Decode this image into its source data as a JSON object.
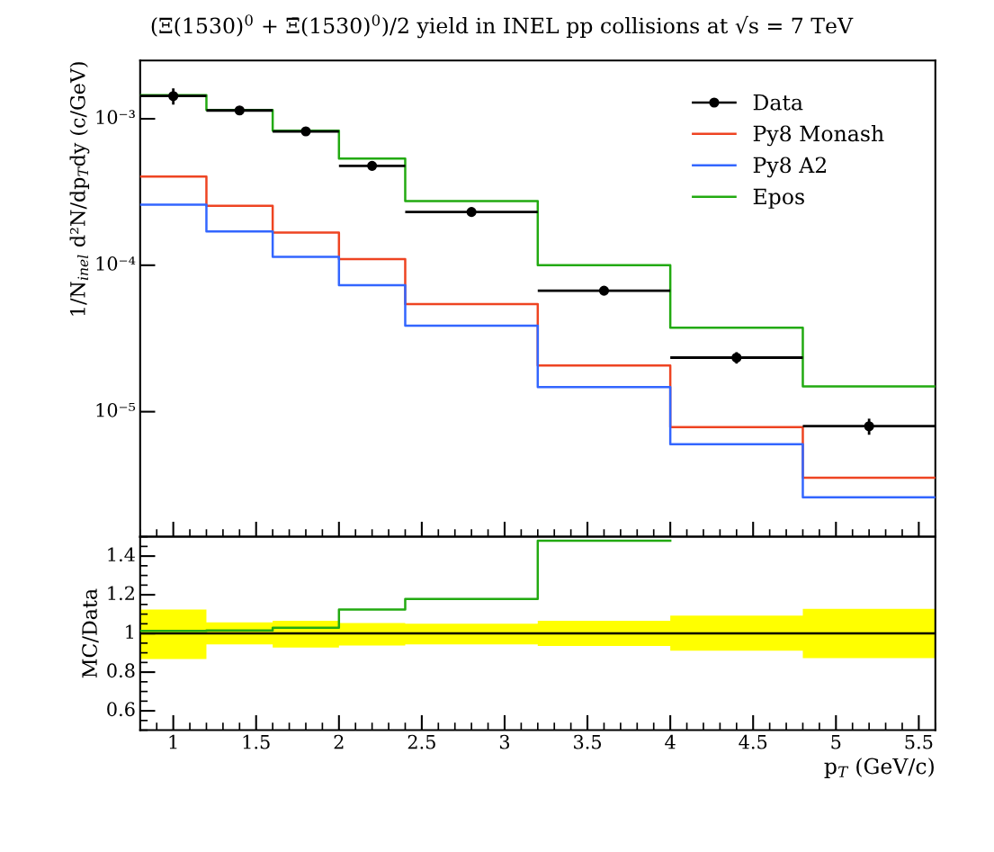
{
  "chart_data": [
    {
      "type": "step",
      "title": "(Ξ(1530)$^{0}$ + Ξ̄(1530)$^{0}$)/2 yield in INEL pp collisions at √s = 7 TeV",
      "ylabel": "1/N$_{inel}$ d²N/dp$_{T}$dy (c/GeV)",
      "x": [
        0.8,
        1.2,
        1.6,
        2.0,
        2.4,
        3.2,
        4.0,
        4.8,
        5.6
      ],
      "xlim": [
        0.8,
        5.6
      ],
      "xticks": [
        1,
        1.5,
        2,
        2.5,
        3,
        3.5,
        4,
        4.5,
        5,
        5.5
      ],
      "log": true,
      "ylim": [
        1.4e-06,
        0.0025
      ],
      "yticks": [
        {
          "value": 1e-05,
          "label": "10⁻⁵"
        },
        {
          "value": 0.0001,
          "label": "10⁻⁴"
        },
        {
          "value": 0.001,
          "label": "10⁻³"
        }
      ],
      "tick_labels": "y",
      "legend": "top right",
      "series": [
        {
          "name": "Data",
          "type": "scatter",
          "color": "#000000",
          "marker": "circle",
          "x": [
            1.0,
            1.4,
            1.8,
            2.2,
            2.8,
            3.6,
            4.4,
            5.2
          ],
          "xerrors": [
            0.2,
            0.2,
            0.2,
            0.2,
            0.4,
            0.4,
            0.4,
            0.4
          ],
          "values": [
            0.00143,
            0.00114,
            0.00082,
            0.000477,
            0.000231,
            6.7e-05,
            2.34e-05,
            7.96e-06
          ],
          "errors": [
            0.00018,
            6.5e-05,
            5.5e-05,
            2.7e-05,
            1.2e-05,
            4.3e-06,
            2.1e-06,
            1e-06
          ]
        },
        {
          "name": "Py8 Monash",
          "color": "#ee4422",
          "values": [
            0.000403,
            0.000255,
            0.000167,
            0.00011,
            5.43e-05,
            2.07e-05,
            7.85e-06,
            3.54e-06,
            3.54e-06
          ]
        },
        {
          "name": "Py8 A2",
          "color": "#3366ff",
          "values": [
            0.000259,
            0.00017,
            0.000114,
            7.3e-05,
            3.86e-05,
            1.47e-05,
            6e-06,
            2.6e-06,
            2.6e-06
          ]
        },
        {
          "name": "Epos",
          "color": "#22aa11",
          "values": [
            0.00145,
            0.00115,
            0.00083,
            0.000535,
            0.000274,
            0.0001,
            3.75e-05,
            1.49e-05,
            1.49e-05
          ]
        }
      ]
    },
    {
      "type": "step",
      "xlabel": "p$_{T}$ (GeV/c)",
      "ylabel": "MC/Data",
      "x": [
        0.8,
        1.2,
        1.6,
        2.0,
        2.4,
        3.2,
        4.0,
        4.8,
        5.6
      ],
      "xlim": [
        0.8,
        5.6
      ],
      "xticks": [
        1,
        1.5,
        2,
        2.5,
        3,
        3.5,
        4,
        4.5,
        5,
        5.5
      ],
      "ylim": [
        0.5,
        1.5
      ],
      "yticks": [
        0.6,
        0.8,
        1,
        1.2,
        1.4
      ],
      "series": [
        {
          "color": "#000000",
          "values": [
            1,
            1,
            1,
            1,
            1,
            1,
            1,
            1,
            1
          ],
          "lower": [
            0.868,
            0.943,
            0.927,
            0.938,
            0.943,
            0.935,
            0.911,
            0.873,
            0.873
          ],
          "upper": [
            1.124,
            1.057,
            1.065,
            1.054,
            1.05,
            1.065,
            1.092,
            1.127,
            1.127
          ]
        },
        {
          "color": "#22aa11",
          "x": [
            0.8,
            1.2,
            1.6,
            2.0,
            2.4,
            3.2,
            4.0
          ],
          "values": [
            1.013,
            1.016,
            1.03,
            1.124,
            1.178,
            1.48,
            1.48
          ]
        }
      ]
    }
  ]
}
